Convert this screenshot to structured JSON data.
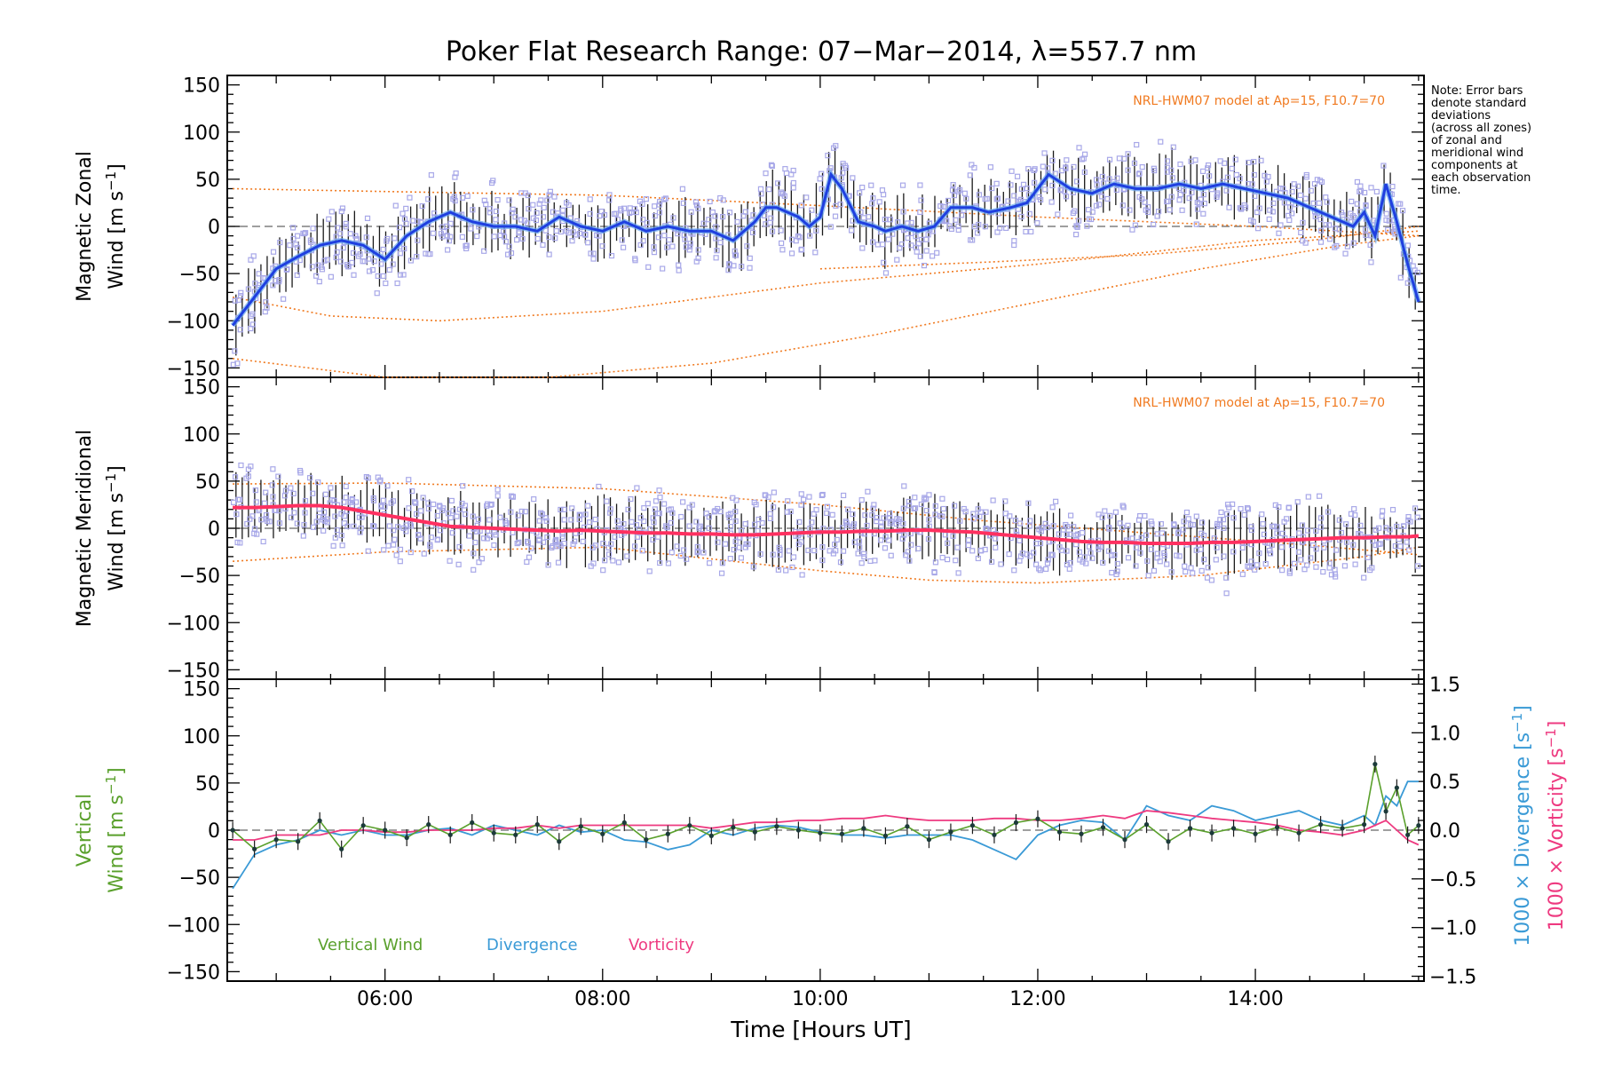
{
  "title": "Poker Flat Research Range: 07−Mar−2014, λ=557.7 nm",
  "note_lines": [
    "Note: Error bars",
    "denote standard",
    "deviations",
    "(across all zones)",
    "of zonal and",
    "meridional wind",
    "components at",
    "each observation",
    "time."
  ],
  "model_label": "NRL-HWM07 model at Ap=15, F10.7=70",
  "xlabel": "Time [Hours UT]",
  "x_ticks": [
    "06:00",
    "08:00",
    "10:00",
    "12:00",
    "14:00"
  ],
  "y_ticks": [
    "150",
    "100",
    "50",
    "0",
    "−50",
    "−100",
    "−150"
  ],
  "right_ticks": [
    "1.5",
    "1.0",
    "0.5",
    "0.0",
    "−0.5",
    "−1.0",
    "−1.5"
  ],
  "panels": {
    "zonal": {
      "ylabel_line1": "Magnetic Zonal",
      "ylabel_line2": "Wind [m s",
      "ylabel_sup": "−1",
      "ylabel_close": "]"
    },
    "meridional": {
      "ylabel_line1": "Magnetic Meridional",
      "ylabel_line2": "Wind [m s",
      "ylabel_sup": "−1",
      "ylabel_close": "]"
    },
    "vertical": {
      "ylabel_line1": "Vertical",
      "ylabel_line2": "Wind [m s",
      "ylabel_sup": "−1",
      "ylabel_close": "]"
    }
  },
  "right_axis": {
    "divergence_label": "1000 × Divergence [s",
    "divergence_sup": "−1",
    "divergence_close": "]",
    "vorticity_label": "1000 × Vorticity [s",
    "vorticity_sup": "−1",
    "vorticity_close": "]"
  },
  "legend": {
    "vertical": "Vertical Wind",
    "divergence": "Divergence",
    "vorticity": "Vorticity"
  },
  "colors": {
    "zonal": "#1f3fe0",
    "zonal_light": "#6aa8ee",
    "meridional": "#ff3060",
    "vertical": "#5aa02c",
    "divergence": "#3a9ad6",
    "vorticity": "#ee3a80",
    "model": "#f07a20",
    "zones": "#a8a8e8",
    "errorbar": "#1a1a1a"
  },
  "chart_data": [
    {
      "type": "line",
      "title": "Poker Flat Research Range: 07−Mar−2014, λ=557.7 nm",
      "ylabel": "Magnetic Zonal Wind [m s−1]",
      "ylim": [
        -160,
        160
      ],
      "xlim": [
        4.55,
        15.55
      ],
      "x": [
        4.6,
        4.8,
        5.0,
        5.2,
        5.4,
        5.6,
        5.8,
        6.0,
        6.2,
        6.4,
        6.6,
        6.8,
        7.0,
        7.2,
        7.4,
        7.6,
        7.8,
        8.0,
        8.2,
        8.4,
        8.6,
        8.8,
        9.0,
        9.2,
        9.4,
        9.5,
        9.6,
        9.8,
        9.9,
        10.0,
        10.1,
        10.2,
        10.35,
        10.5,
        10.6,
        10.75,
        10.9,
        11.05,
        11.2,
        11.4,
        11.55,
        11.75,
        11.9,
        12.1,
        12.3,
        12.5,
        12.7,
        12.9,
        13.1,
        13.3,
        13.5,
        13.7,
        13.9,
        14.1,
        14.3,
        14.5,
        14.7,
        14.9,
        15.0,
        15.1,
        15.2,
        15.3,
        15.4,
        15.5
      ],
      "series": [
        {
          "name": "Zonal wind",
          "values": [
            -105,
            -75,
            -45,
            -32,
            -20,
            -15,
            -20,
            -35,
            -10,
            5,
            15,
            5,
            0,
            0,
            -5,
            10,
            0,
            -5,
            5,
            -5,
            0,
            -5,
            -5,
            -15,
            5,
            20,
            20,
            10,
            0,
            10,
            55,
            40,
            5,
            0,
            -5,
            0,
            -5,
            0,
            20,
            20,
            15,
            20,
            25,
            55,
            40,
            35,
            45,
            40,
            40,
            45,
            40,
            45,
            40,
            35,
            30,
            20,
            10,
            0,
            15,
            -10,
            45,
            5,
            -40,
            -80
          ]
        }
      ],
      "model": [
        {
          "name": "model 1",
          "x": [
            4.6,
            6.0,
            8.0,
            10.0,
            12.0,
            14.0,
            15.5
          ],
          "values": [
            40,
            37,
            33,
            22,
            10,
            0,
            -10
          ]
        },
        {
          "name": "model 2",
          "x": [
            4.6,
            5.5,
            6.5,
            8.0,
            10.0,
            12.0,
            14.0,
            15.5
          ],
          "values": [
            -75,
            -95,
            -100,
            -90,
            -60,
            -40,
            -15,
            -5
          ]
        },
        {
          "name": "model 3",
          "x": [
            4.6,
            6.0,
            7.5,
            9.0,
            10.5,
            12.0,
            13.5,
            14.8,
            15.5
          ],
          "values": [
            -140,
            -160,
            -160,
            -145,
            -115,
            -80,
            -45,
            -20,
            -10
          ]
        },
        {
          "name": "model 4",
          "x": [
            10.0,
            11.5,
            13.0,
            14.5,
            15.5
          ],
          "values": [
            -45,
            -38,
            -30,
            -15,
            0
          ]
        }
      ]
    },
    {
      "type": "line",
      "ylabel": "Magnetic Meridional Wind [m s−1]",
      "ylim": [
        -160,
        160
      ],
      "xlim": [
        4.55,
        15.55
      ],
      "x": [
        4.6,
        4.8,
        5.0,
        5.2,
        5.4,
        5.6,
        5.8,
        6.0,
        6.2,
        6.4,
        6.6,
        6.8,
        7.0,
        7.2,
        7.4,
        7.6,
        7.8,
        8.0,
        8.2,
        8.4,
        8.6,
        8.8,
        9.0,
        9.2,
        9.4,
        9.6,
        9.8,
        10.0,
        10.2,
        10.4,
        10.6,
        10.8,
        11.0,
        11.2,
        11.4,
        11.6,
        11.8,
        12.0,
        12.2,
        12.4,
        12.6,
        12.8,
        13.0,
        13.2,
        13.4,
        13.6,
        13.8,
        14.0,
        14.2,
        14.4,
        14.6,
        14.8,
        15.0,
        15.2,
        15.4,
        15.5
      ],
      "series": [
        {
          "name": "Meridional wind",
          "values": [
            22,
            22,
            23,
            24,
            24,
            22,
            18,
            14,
            10,
            6,
            2,
            1,
            0,
            -1,
            -2,
            -3,
            -2,
            -3,
            -4,
            -5,
            -5,
            -6,
            -6,
            -7,
            -7,
            -6,
            -5,
            -4,
            -4,
            -3,
            -3,
            -2,
            -2,
            -3,
            -4,
            -6,
            -8,
            -10,
            -12,
            -14,
            -15,
            -15,
            -16,
            -16,
            -16,
            -15,
            -15,
            -14,
            -13,
            -12,
            -11,
            -10,
            -10,
            -9,
            -9,
            -8
          ]
        }
      ],
      "model": [
        {
          "name": "model 1",
          "x": [
            4.6,
            6.0,
            8.0,
            10.0,
            11.5,
            13.0,
            14.5,
            15.5
          ],
          "values": [
            47,
            48,
            42,
            25,
            8,
            -5,
            -18,
            -28
          ]
        },
        {
          "name": "model 2",
          "x": [
            4.6,
            6.0,
            8.0,
            10.0,
            11.0,
            12.0,
            13.5,
            15.0,
            15.5
          ],
          "values": [
            -35,
            -25,
            -20,
            -45,
            -55,
            -58,
            -50,
            -30,
            -20
          ]
        }
      ]
    },
    {
      "type": "line",
      "ylabel": "Vertical Wind [m s−1]",
      "y2label": "1000 × Divergence [s−1] / 1000 × Vorticity [s−1]",
      "ylim": [
        -160,
        160
      ],
      "y2lim": [
        -1.55,
        1.55
      ],
      "xlim": [
        4.55,
        15.55
      ],
      "x": [
        4.6,
        4.8,
        5.0,
        5.2,
        5.4,
        5.6,
        5.8,
        6.0,
        6.2,
        6.4,
        6.6,
        6.8,
        7.0,
        7.2,
        7.4,
        7.6,
        7.8,
        8.0,
        8.2,
        8.4,
        8.6,
        8.8,
        9.0,
        9.2,
        9.4,
        9.6,
        9.8,
        10.0,
        10.2,
        10.4,
        10.6,
        10.8,
        11.0,
        11.2,
        11.4,
        11.6,
        11.8,
        12.0,
        12.2,
        12.4,
        12.6,
        12.8,
        13.0,
        13.2,
        13.4,
        13.6,
        13.8,
        14.0,
        14.2,
        14.4,
        14.6,
        14.8,
        15.0,
        15.1,
        15.2,
        15.3,
        15.4,
        15.5
      ],
      "series": [
        {
          "name": "Vertical Wind",
          "axis": "left",
          "values": [
            0,
            -20,
            -10,
            -12,
            10,
            -20,
            5,
            0,
            -8,
            6,
            -5,
            8,
            -3,
            -5,
            6,
            -12,
            4,
            -4,
            8,
            -10,
            -4,
            5,
            -6,
            3,
            -2,
            4,
            0,
            -3,
            -4,
            2,
            -6,
            4,
            -10,
            -2,
            5,
            -5,
            8,
            12,
            -2,
            -4,
            3,
            -10,
            6,
            -12,
            2,
            -3,
            2,
            -4,
            3,
            -3,
            6,
            2,
            6,
            70,
            20,
            45,
            -5,
            5
          ]
        },
        {
          "name": "Divergence",
          "axis": "right",
          "values": [
            -0.6,
            -0.25,
            -0.15,
            -0.1,
            0.0,
            -0.05,
            0.0,
            -0.05,
            -0.05,
            0.0,
            0.02,
            -0.05,
            0.05,
            0.0,
            -0.05,
            0.05,
            -0.02,
            0.0,
            -0.1,
            -0.12,
            -0.2,
            -0.15,
            0.0,
            -0.05,
            0.02,
            0.05,
            0.03,
            -0.02,
            -0.05,
            -0.05,
            -0.08,
            -0.05,
            -0.05,
            -0.05,
            -0.1,
            -0.2,
            -0.3,
            -0.05,
            0.05,
            0.1,
            0.08,
            -0.1,
            0.25,
            0.15,
            0.1,
            0.25,
            0.2,
            0.1,
            0.15,
            0.2,
            0.1,
            0.05,
            0.15,
            0.05,
            0.35,
            0.25,
            0.5,
            0.5
          ]
        },
        {
          "name": "Vorticity",
          "axis": "right",
          "values": [
            -0.1,
            -0.1,
            -0.05,
            -0.05,
            -0.05,
            0.0,
            0.0,
            -0.02,
            -0.02,
            0.0,
            0.0,
            0.0,
            0.02,
            0.02,
            0.05,
            0.02,
            0.05,
            0.05,
            0.05,
            0.05,
            0.05,
            0.05,
            0.02,
            0.05,
            0.08,
            0.08,
            0.1,
            0.1,
            0.12,
            0.12,
            0.15,
            0.12,
            0.1,
            0.1,
            0.1,
            0.12,
            0.12,
            0.1,
            0.1,
            0.12,
            0.15,
            0.12,
            0.2,
            0.18,
            0.15,
            0.12,
            0.1,
            0.08,
            0.05,
            0.0,
            -0.02,
            -0.05,
            0.0,
            0.05,
            0.1,
            0.0,
            -0.1,
            -0.15
          ]
        }
      ]
    }
  ]
}
